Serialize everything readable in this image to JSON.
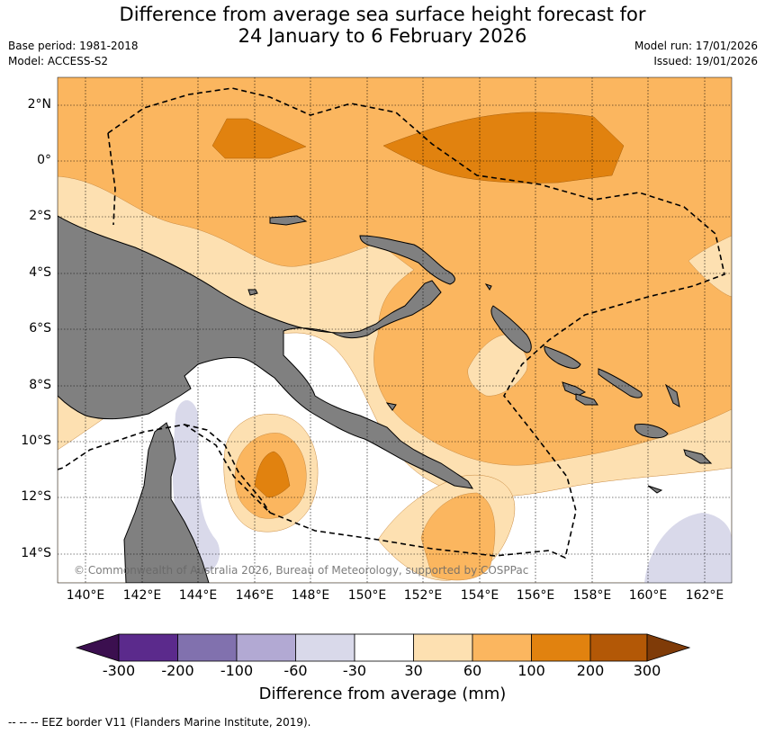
{
  "title_line1": "Difference from average sea surface height forecast for",
  "title_line2": "24 January to 6 February 2026",
  "base_period": "Base period: 1981-2018",
  "model": "Model: ACCESS-S2",
  "model_run": "Model run: 17/01/2026",
  "issued": "Issued: 19/01/2026",
  "lat_labels": [
    "2°N",
    "0°",
    "2°S",
    "4°S",
    "6°S",
    "8°S",
    "10°S",
    "12°S",
    "14°S"
  ],
  "lon_labels": [
    "140°E",
    "142°E",
    "144°E",
    "146°E",
    "148°E",
    "150°E",
    "152°E",
    "154°E",
    "156°E",
    "158°E",
    "160°E",
    "162°E"
  ],
  "copyright": "© Commonwealth of Australia 2026, Bureau of Meteorology, supported by COSPPac",
  "colorbar": {
    "title": "Difference from average (mm)",
    "ticks": [
      "-300",
      "-200",
      "-100",
      "-60",
      "-30",
      "30",
      "60",
      "100",
      "200",
      "300"
    ],
    "colors": [
      "#3b0f4f",
      "#5b2a8c",
      "#8171ae",
      "#b2a9d3",
      "#d9d9ea",
      "#ffffff",
      "#fde0b1",
      "#fbb65f",
      "#e1820f",
      "#b35806",
      "#7f3b08"
    ]
  },
  "footer": "--  --  -- EEZ border V11 (Flanders Marine Institute, 2019).",
  "colors": {
    "land": "#808080",
    "eez_line": "#000000",
    "grid": "#000000"
  }
}
